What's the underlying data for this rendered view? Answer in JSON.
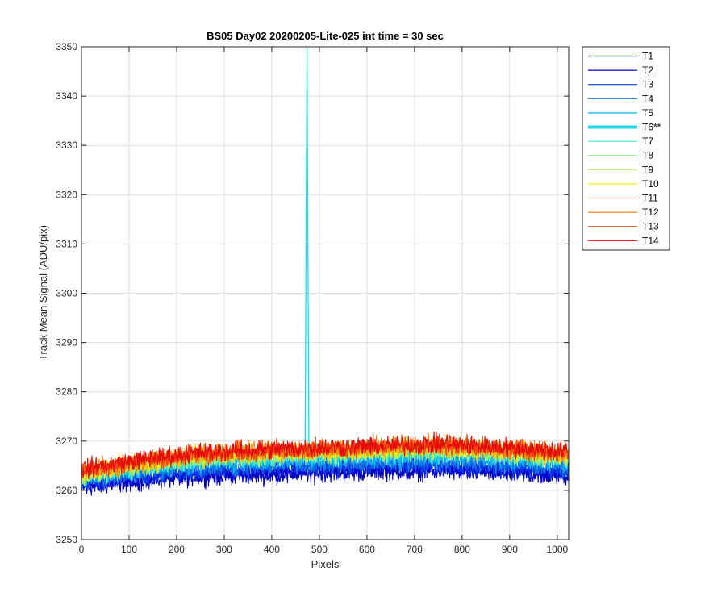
{
  "chart_data": {
    "type": "line",
    "title": "BS05 Day02 20200205-Lite-025 int time = 30 sec",
    "xlabel": "Pixels",
    "ylabel": "Track Mean Signal (ADU/pix)",
    "xlim": [
      0,
      1024
    ],
    "ylim": [
      3250,
      3350
    ],
    "grid": true,
    "legend_position": "outside-top-right",
    "x_ticks": [
      0,
      100,
      200,
      300,
      400,
      500,
      600,
      700,
      800,
      900,
      1000
    ],
    "y_ticks": [
      3250,
      3260,
      3270,
      3280,
      3290,
      3300,
      3310,
      3320,
      3330,
      3340,
      3350
    ],
    "spike": {
      "series": "T6**",
      "x": 474,
      "peak": 3350
    },
    "series": [
      {
        "name": "T1",
        "color": "#0000AA",
        "width": 1.2,
        "profile": [
          3260.5,
          3262.0,
          3263.0,
          3263.2,
          3263.6,
          3264.0,
          3264.0,
          3263.5,
          3263.0
        ],
        "noise": 1.2
      },
      {
        "name": "T2",
        "color": "#0000D8",
        "width": 1.2,
        "profile": [
          3261.0,
          3262.5,
          3263.5,
          3263.8,
          3264.2,
          3264.5,
          3264.5,
          3264.0,
          3263.5
        ],
        "noise": 1.2
      },
      {
        "name": "T3",
        "color": "#0A3CE6",
        "width": 1.2,
        "profile": [
          3261.5,
          3263.0,
          3264.0,
          3264.5,
          3264.8,
          3265.0,
          3265.2,
          3264.6,
          3264.0
        ],
        "noise": 1.2
      },
      {
        "name": "T4",
        "color": "#0A78E6",
        "width": 1.2,
        "profile": [
          3262.0,
          3263.8,
          3264.8,
          3265.2,
          3265.5,
          3265.8,
          3266.0,
          3265.4,
          3264.8
        ],
        "noise": 1.2
      },
      {
        "name": "T5",
        "color": "#0AB4EE",
        "width": 1.2,
        "profile": [
          3262.5,
          3264.3,
          3265.5,
          3266.0,
          3266.3,
          3266.7,
          3266.8,
          3266.2,
          3265.6
        ],
        "noise": 1.2
      },
      {
        "name": "T6**",
        "color": "#14DCF0",
        "width": 4,
        "profile": [
          3263.0,
          3265.0,
          3266.5,
          3267.2,
          3267.6,
          3268.0,
          3268.2,
          3267.5,
          3266.8
        ],
        "noise": 1.3
      },
      {
        "name": "T7",
        "color": "#46F0C8",
        "width": 1.2,
        "profile": [
          3263.0,
          3265.0,
          3266.3,
          3267.0,
          3267.3,
          3267.8,
          3268.0,
          3267.3,
          3266.5
        ],
        "noise": 1.2
      },
      {
        "name": "T8",
        "color": "#82F08C",
        "width": 1.2,
        "profile": [
          3263.2,
          3265.2,
          3266.5,
          3267.2,
          3267.5,
          3268.0,
          3268.2,
          3267.5,
          3266.7
        ],
        "noise": 1.2
      },
      {
        "name": "T9",
        "color": "#BEF050",
        "width": 1.2,
        "profile": [
          3263.3,
          3265.3,
          3266.7,
          3267.3,
          3267.7,
          3268.2,
          3268.4,
          3267.7,
          3266.9
        ],
        "noise": 1.2
      },
      {
        "name": "T10",
        "color": "#F0F014",
        "width": 1.2,
        "profile": [
          3263.5,
          3265.5,
          3266.9,
          3267.5,
          3267.9,
          3268.3,
          3268.6,
          3267.9,
          3267.1
        ],
        "noise": 1.2
      },
      {
        "name": "T11",
        "color": "#F0BE0A",
        "width": 1.2,
        "profile": [
          3263.7,
          3265.7,
          3267.1,
          3267.7,
          3268.1,
          3268.5,
          3268.8,
          3268.1,
          3267.3
        ],
        "noise": 1.2
      },
      {
        "name": "T12",
        "color": "#F08214",
        "width": 1.2,
        "profile": [
          3263.9,
          3265.9,
          3267.3,
          3267.9,
          3268.3,
          3268.7,
          3269.0,
          3268.3,
          3267.5
        ],
        "noise": 1.2
      },
      {
        "name": "T13",
        "color": "#F0460A",
        "width": 1.2,
        "profile": [
          3264.1,
          3266.1,
          3267.5,
          3268.1,
          3268.5,
          3268.9,
          3269.2,
          3268.5,
          3267.7
        ],
        "noise": 1.2
      },
      {
        "name": "T14",
        "color": "#E60A0A",
        "width": 1.2,
        "profile": [
          3264.3,
          3266.3,
          3267.7,
          3268.3,
          3268.7,
          3269.1,
          3269.4,
          3268.7,
          3267.9
        ],
        "noise": 1.2
      }
    ]
  }
}
